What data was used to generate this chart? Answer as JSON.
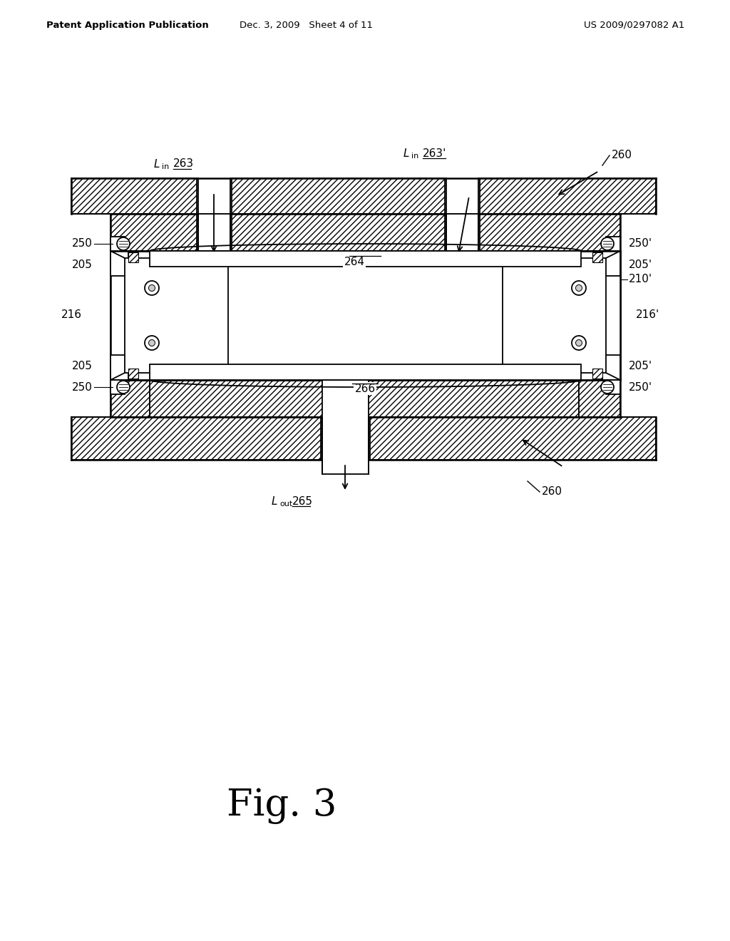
{
  "bg_color": "#ffffff",
  "line_color": "#000000",
  "header_left": "Patent Application Publication",
  "header_mid": "Dec. 3, 2009   Sheet 4 of 11",
  "header_right": "US 2009/0297082 A1",
  "fig_label": "Fig. 3"
}
